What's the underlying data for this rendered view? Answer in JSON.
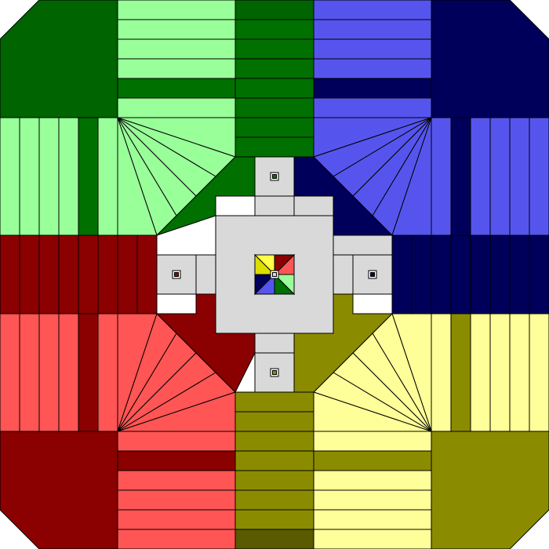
{
  "game": {
    "title": "",
    "type": "board",
    "players": [
      {
        "name": "",
        "color_key": "green"
      },
      {
        "name": "",
        "color_key": "blue"
      },
      {
        "name": "",
        "color_key": "red"
      },
      {
        "name": "",
        "color_key": "yellow"
      }
    ]
  },
  "colors": {
    "background": "#ffffff",
    "stroke": "#000000",
    "green_dark": "#006400",
    "green_mid": "#007000",
    "green_light": "#99ff99",
    "blue_dark": "#00005a",
    "blue_light": "#5555ee",
    "red_dark": "#8b0000",
    "red_light": "#ff5555",
    "yellow_dark": "#8b8b00",
    "yellow_light": "#ffff99",
    "center_gray": "#d9d9d9",
    "home_marker": "#ffffff"
  },
  "board": {
    "corner_bases": [
      {
        "name": "green-base",
        "color": "green_dark"
      },
      {
        "name": "blue-base",
        "color": "blue_dark"
      },
      {
        "name": "red-base",
        "color": "red_dark"
      },
      {
        "name": "yellow-base",
        "color": "yellow_dark"
      }
    ],
    "arms": [
      {
        "name": "top-arm",
        "home_color": "green_mid",
        "left_color": "green_light",
        "right_color": "blue_light"
      },
      {
        "name": "right-arm",
        "home_color": "blue_dark",
        "left_color": "blue_light",
        "right_color": "yellow_light"
      },
      {
        "name": "bottom-arm",
        "home_color": "yellow_dark",
        "left_color": "red_light",
        "right_color": "yellow_light"
      },
      {
        "name": "left-arm",
        "home_color": "red_dark",
        "left_color": "green_light",
        "right_color": "red_light"
      }
    ],
    "center": {
      "goal_quadrants": [
        "yellow",
        "red",
        "blue",
        "green"
      ],
      "entry_markers": [
        "top",
        "right",
        "bottom",
        "left"
      ]
    }
  }
}
